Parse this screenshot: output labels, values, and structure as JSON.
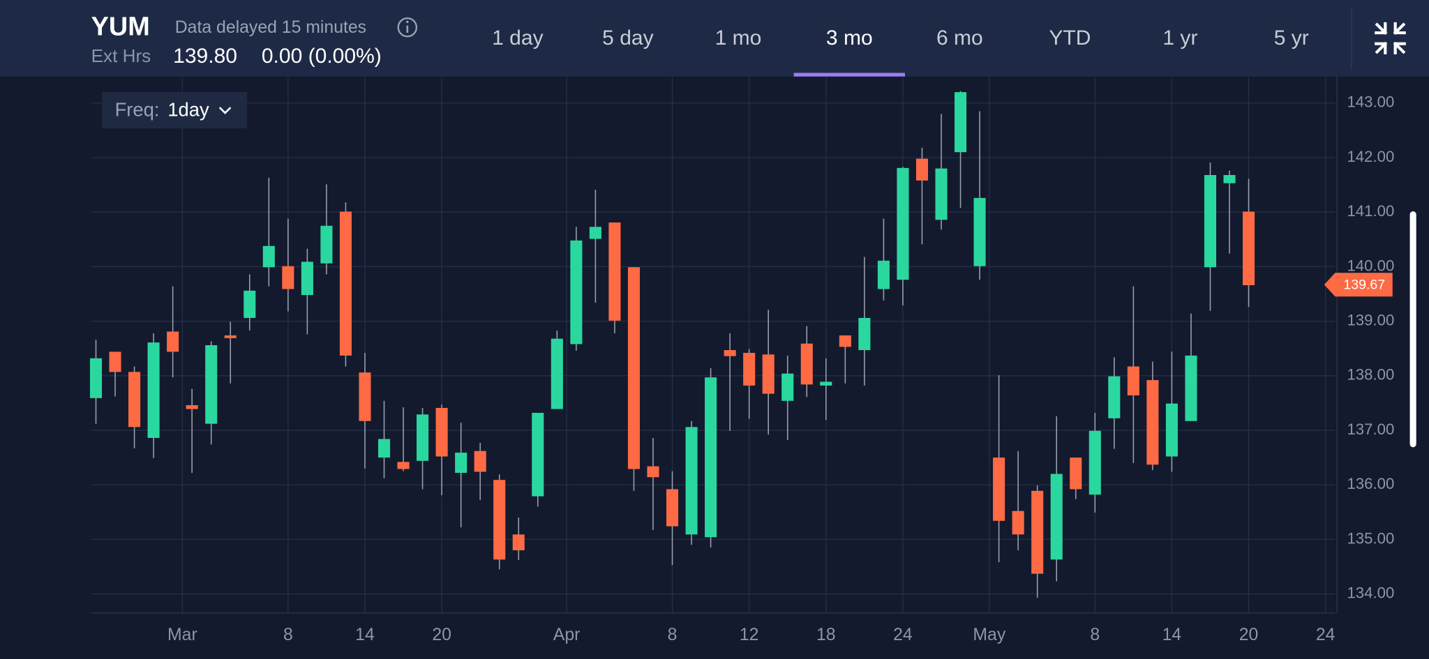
{
  "header": {
    "symbol": "YUM",
    "delay_note": "Data delayed 15 minutes",
    "ext_label": "Ext Hrs",
    "ext_price": "139.80",
    "ext_change": "0.00 (0.00%)",
    "ranges": [
      "1 day",
      "5 day",
      "1 mo",
      "3 mo",
      "6 mo",
      "YTD",
      "1 yr",
      "5 yr"
    ],
    "selected_range": 3,
    "freq_label": "Freq:",
    "freq_value": "1day"
  },
  "chart_data": {
    "type": "candlestick",
    "up_color": "#2ad89f",
    "down_color": "#fe6a44",
    "x": [
      0,
      1,
      2,
      3,
      4,
      5,
      6,
      7,
      8,
      9,
      10,
      11,
      12,
      13,
      14,
      15,
      16,
      17,
      18,
      19,
      20,
      21,
      22,
      23,
      24,
      25,
      26,
      27,
      28,
      29,
      30,
      31,
      32,
      33,
      34,
      35,
      36,
      37,
      38,
      39,
      40,
      41,
      42,
      43,
      44,
      45,
      46,
      47,
      48,
      49,
      50,
      51,
      52,
      53,
      54,
      55,
      56,
      57,
      58,
      59,
      60
    ],
    "open": [
      137.59,
      138.44,
      138.07,
      136.86,
      138.81,
      137.46,
      137.12,
      138.74,
      139.06,
      139.99,
      140.01,
      139.48,
      140.06,
      141.01,
      138.06,
      136.5,
      136.42,
      136.44,
      137.41,
      136.22,
      136.62,
      136.09,
      135.09,
      135.79,
      137.39,
      138.58,
      140.51,
      140.81,
      139.99,
      136.34,
      135.92,
      135.09,
      135.04,
      138.47,
      138.42,
      138.39,
      137.54,
      138.59,
      137.82,
      138.74,
      138.47,
      139.59,
      139.76,
      141.98,
      140.86,
      142.1,
      140.01,
      136.5,
      135.52,
      135.89,
      134.63,
      136.5,
      135.82,
      137.22,
      138.17,
      137.92,
      136.52,
      137.17,
      139.99,
      141.53,
      141.01
    ],
    "high": [
      138.66,
      138.44,
      138.17,
      138.78,
      139.64,
      137.76,
      138.63,
      138.99,
      139.86,
      141.63,
      140.88,
      140.33,
      141.51,
      141.18,
      138.42,
      137.54,
      137.42,
      137.41,
      137.47,
      137.14,
      136.77,
      136.19,
      135.4,
      137.32,
      138.83,
      140.73,
      141.41,
      140.81,
      139.99,
      136.86,
      136.25,
      137.17,
      138.14,
      138.78,
      138.49,
      139.21,
      138.37,
      138.91,
      138.32,
      138.74,
      140.18,
      140.88,
      141.83,
      142.18,
      142.8,
      143.22,
      142.85,
      138.01,
      136.62,
      135.99,
      137.26,
      136.5,
      137.32,
      138.34,
      139.64,
      138.26,
      138.44,
      139.14,
      141.91,
      141.76,
      141.61
    ],
    "low": [
      137.12,
      137.62,
      136.67,
      136.49,
      137.97,
      136.22,
      136.74,
      137.86,
      138.83,
      139.64,
      139.18,
      138.76,
      139.86,
      138.17,
      136.3,
      136.12,
      136.25,
      135.92,
      135.81,
      135.22,
      135.72,
      134.45,
      134.62,
      135.6,
      137.39,
      138.46,
      139.34,
      138.78,
      135.89,
      135.17,
      134.53,
      134.9,
      134.85,
      136.99,
      137.21,
      136.92,
      136.82,
      137.61,
      137.19,
      137.86,
      137.82,
      139.38,
      139.29,
      140.41,
      140.68,
      141.08,
      139.76,
      134.58,
      134.8,
      133.93,
      134.23,
      135.74,
      135.49,
      136.66,
      136.4,
      136.27,
      136.24,
      137.17,
      139.19,
      140.24,
      139.26
    ],
    "close": [
      138.32,
      138.07,
      137.06,
      138.61,
      138.44,
      137.39,
      138.56,
      138.69,
      139.56,
      140.38,
      139.59,
      140.09,
      140.75,
      138.37,
      137.17,
      136.84,
      136.29,
      137.29,
      136.52,
      136.59,
      136.24,
      134.63,
      134.8,
      137.32,
      138.68,
      140.48,
      140.73,
      139.01,
      136.29,
      136.14,
      135.24,
      137.06,
      137.97,
      138.36,
      137.82,
      137.67,
      138.04,
      137.84,
      137.89,
      138.53,
      139.06,
      140.11,
      141.81,
      141.58,
      141.8,
      143.2,
      141.26,
      135.34,
      135.09,
      134.37,
      136.2,
      135.92,
      136.99,
      137.99,
      137.64,
      136.37,
      137.49,
      138.37,
      141.68,
      141.68,
      139.66
    ],
    "last_price": 139.67,
    "xlim": [
      -0.25,
      64.5
    ],
    "xticks": [
      {
        "value": 4.5,
        "label": "Mar"
      },
      {
        "value": 10,
        "label": "8"
      },
      {
        "value": 14,
        "label": "14"
      },
      {
        "value": 18,
        "label": "20"
      },
      {
        "value": 24.5,
        "label": "Apr"
      },
      {
        "value": 30,
        "label": "8"
      },
      {
        "value": 34,
        "label": "12"
      },
      {
        "value": 38,
        "label": "18"
      },
      {
        "value": 42,
        "label": "24"
      },
      {
        "value": 46.5,
        "label": "May"
      },
      {
        "value": 52,
        "label": "8"
      },
      {
        "value": 56,
        "label": "14"
      },
      {
        "value": 60,
        "label": "20"
      },
      {
        "value": 64,
        "label": "24"
      }
    ],
    "ylim": [
      133.65,
      143.47
    ],
    "yticks": [
      {
        "value": 134,
        "label": "134.00"
      },
      {
        "value": 135,
        "label": "135.00"
      },
      {
        "value": 136,
        "label": "136.00"
      },
      {
        "value": 137,
        "label": "137.00"
      },
      {
        "value": 138,
        "label": "138.00"
      },
      {
        "value": 139,
        "label": "139.00"
      },
      {
        "value": 140,
        "label": "140.00"
      },
      {
        "value": 141,
        "label": "141.00"
      },
      {
        "value": 142,
        "label": "142.00"
      },
      {
        "value": 143,
        "label": "143.00"
      }
    ],
    "grid": true
  }
}
